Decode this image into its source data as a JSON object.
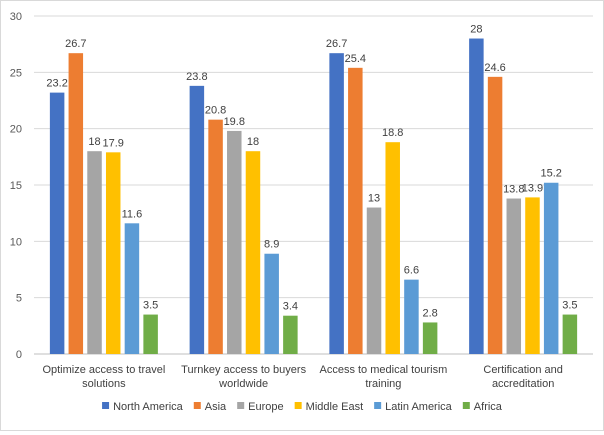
{
  "chart_data": {
    "type": "bar",
    "title": "",
    "xlabel": "",
    "ylabel": "",
    "ylim": [
      0,
      30
    ],
    "yticks": [
      0,
      5,
      10,
      15,
      20,
      25,
      30
    ],
    "grid": true,
    "legend_position": "bottom",
    "categories": [
      [
        "Optimize access to travel",
        "solutions"
      ],
      [
        "Turnkey access to buyers",
        "worldwide"
      ],
      [
        "Access to medical tourism",
        "training"
      ],
      [
        "Certification and",
        "accreditation"
      ]
    ],
    "series": [
      {
        "name": "North America",
        "color": "#4472c4",
        "values": [
          23.2,
          23.8,
          26.7,
          28
        ]
      },
      {
        "name": "Asia",
        "color": "#ed7d31",
        "values": [
          26.7,
          20.8,
          25.4,
          24.6
        ]
      },
      {
        "name": "Europe",
        "color": "#a5a5a5",
        "values": [
          18,
          19.8,
          13,
          13.8
        ]
      },
      {
        "name": "Middle East",
        "color": "#ffc000",
        "values": [
          17.9,
          18,
          18.8,
          13.9
        ]
      },
      {
        "name": "Latin America",
        "color": "#5b9bd5",
        "values": [
          11.6,
          8.9,
          6.6,
          15.2
        ]
      },
      {
        "name": "Africa",
        "color": "#70ad47",
        "values": [
          3.5,
          3.4,
          2.8,
          3.5
        ]
      }
    ]
  }
}
